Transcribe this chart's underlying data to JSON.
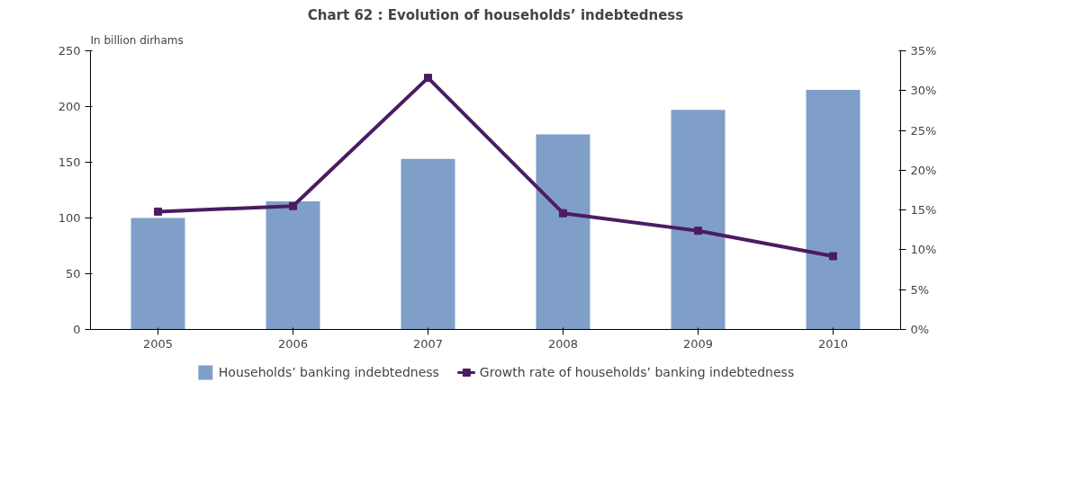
{
  "chart_data": {
    "type": "bar",
    "title": "Chart 62 : Evolution of households’ indebtedness",
    "ylabel": "In billion dirhams",
    "categories": [
      "2005",
      "2006",
      "2007",
      "2008",
      "2009",
      "2010"
    ],
    "series": [
      {
        "name": "Households’ banking indebtedness",
        "color": "#7f9fc8",
        "type": "bar",
        "values": [
          100,
          115,
          153,
          175,
          197,
          215
        ]
      },
      {
        "name": "Growth rate of households’ banking indebtedness",
        "color": "#4b1c62",
        "type": "line",
        "axis": "y2",
        "marker": "square",
        "values": [
          14.8,
          15.5,
          31.6,
          14.6,
          12.4,
          9.2
        ]
      }
    ],
    "ylim": [
      0,
      250
    ],
    "yticks": [
      0,
      50,
      100,
      150,
      200,
      250
    ],
    "y2lim": [
      0,
      35
    ],
    "y2ticks": [
      {
        "value": 0,
        "label": "0%"
      },
      {
        "value": 5,
        "label": "5%"
      },
      {
        "value": 10,
        "label": "10%"
      },
      {
        "value": 15,
        "label": "15%"
      },
      {
        "value": 20,
        "label": "20%"
      },
      {
        "value": 25,
        "label": "25%"
      },
      {
        "value": 30,
        "label": "30%"
      },
      {
        "value": 35,
        "label": "35%"
      }
    ],
    "grid": false,
    "legend": "bottom"
  }
}
